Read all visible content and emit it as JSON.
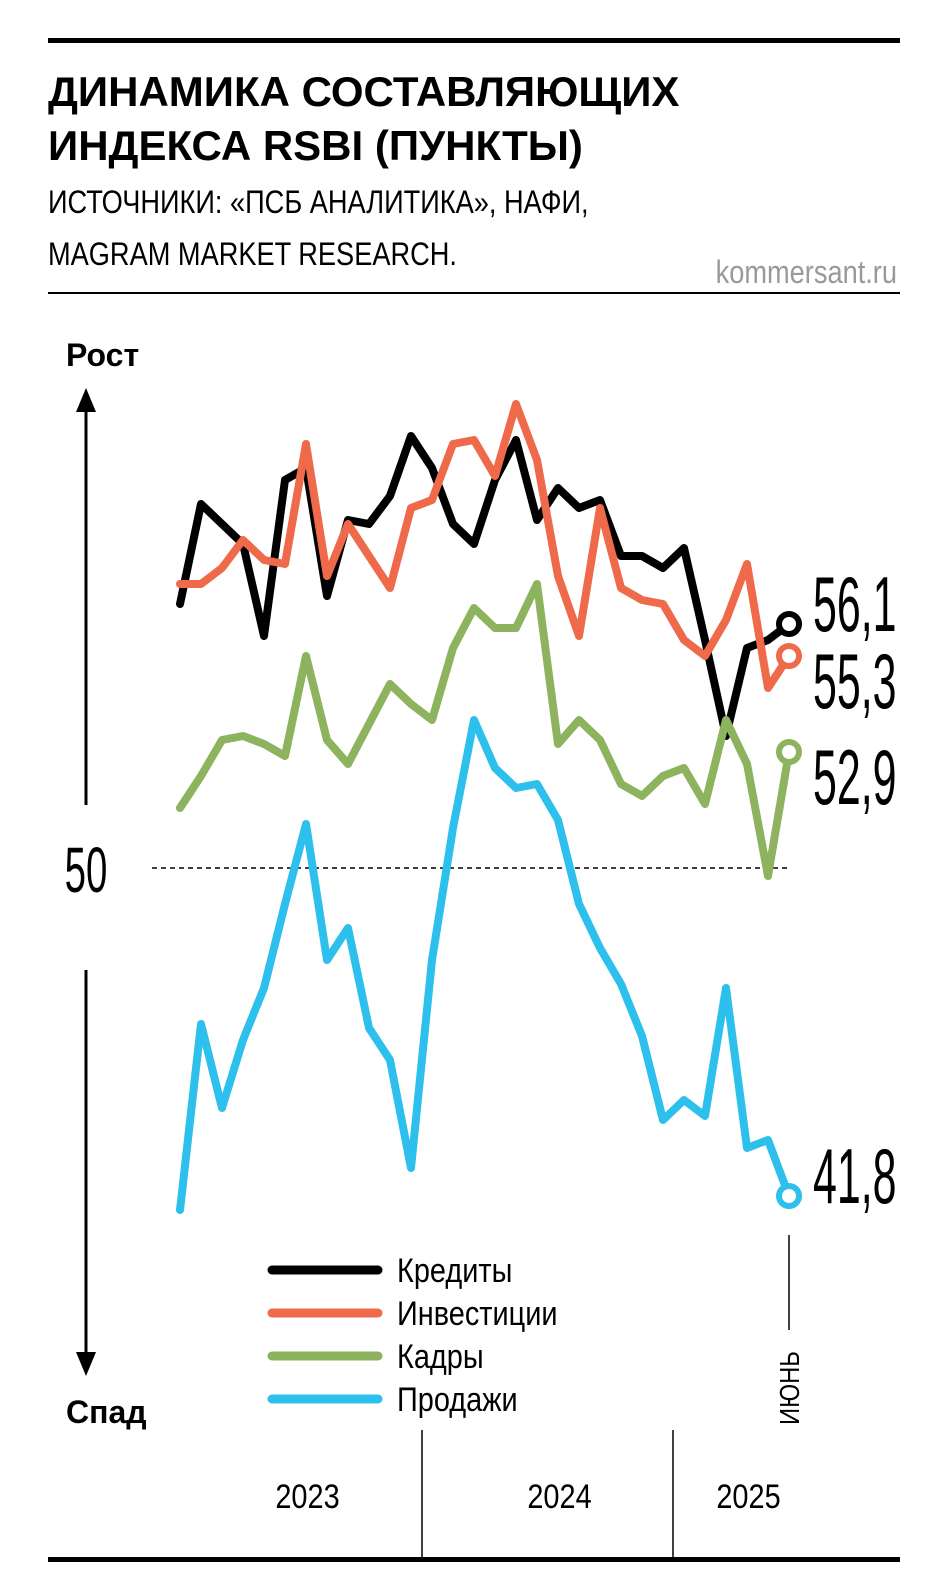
{
  "chart_data": {
    "type": "line",
    "title": [
      "ДИНАМИКА СОСТАВЛЯЮЩИХ",
      "ИНДЕКСА RSBI (ПУНКТЫ)"
    ],
    "subtitle": [
      "ИСТОЧНИКИ: «ПСБ АНАЛИТИКА», НАФИ,",
      "MAGRAM MARKET RESEARCH."
    ],
    "source": "kommersant.ru",
    "axis_up": "Рост",
    "axis_down": "Спад",
    "categories": [
      null,
      null,
      null,
      null,
      null,
      null,
      null,
      null,
      null,
      null,
      null,
      null,
      null,
      null,
      null,
      null,
      null,
      null,
      null,
      null,
      null,
      null,
      null,
      null,
      null,
      null,
      null,
      null,
      null,
      "ИЮНЬ"
    ],
    "years": [
      "2023",
      "2024",
      "2025"
    ],
    "ylim": [
      40,
      62
    ],
    "yticks": [
      50
    ],
    "grid": true,
    "series": [
      {
        "name": "Кредиты",
        "color": "#000000",
        "values": [
          56.6,
          59.1,
          58.6,
          58.1,
          55.8,
          59.7,
          60.0,
          56.8,
          58.7,
          58.6,
          59.3,
          60.8,
          60.0,
          58.6,
          58.1,
          59.7,
          60.7,
          58.7,
          59.5,
          59.0,
          59.2,
          57.8,
          57.8,
          57.5,
          58.0,
          55.7,
          53.3,
          55.5,
          55.7,
          56.1
        ],
        "value_labels": [
          null,
          null,
          null,
          null,
          null,
          null,
          null,
          null,
          null,
          null,
          null,
          null,
          null,
          null,
          null,
          null,
          null,
          null,
          null,
          null,
          null,
          null,
          null,
          null,
          null,
          null,
          null,
          null,
          null,
          "56,1"
        ]
      },
      {
        "name": "Инвестиции",
        "color": "#ee6a4a",
        "values": [
          57.1,
          57.1,
          57.5,
          58.2,
          57.7,
          57.6,
          60.6,
          57.3,
          58.6,
          57.8,
          57.0,
          59.0,
          59.2,
          60.6,
          60.7,
          59.8,
          61.6,
          60.2,
          57.3,
          55.8,
          59.0,
          57.0,
          56.7,
          56.6,
          55.7,
          55.3,
          56.2,
          57.6,
          54.5,
          55.3
        ],
        "value_labels": [
          null,
          null,
          null,
          null,
          null,
          null,
          null,
          null,
          null,
          null,
          null,
          null,
          null,
          null,
          null,
          null,
          null,
          null,
          null,
          null,
          null,
          null,
          null,
          null,
          null,
          null,
          null,
          null,
          null,
          "55,3"
        ]
      },
      {
        "name": "Кадры",
        "color": "#8db35e",
        "values": [
          51.5,
          52.3,
          53.2,
          53.3,
          53.1,
          52.8,
          55.3,
          53.2,
          52.6,
          53.6,
          54.6,
          54.1,
          53.7,
          55.5,
          56.5,
          56.0,
          56.0,
          57.1,
          53.1,
          53.7,
          53.2,
          52.1,
          51.8,
          52.3,
          52.5,
          51.6,
          53.7,
          52.6,
          49.8,
          52.9
        ],
        "value_labels": [
          null,
          null,
          null,
          null,
          null,
          null,
          null,
          null,
          null,
          null,
          null,
          null,
          null,
          null,
          null,
          null,
          null,
          null,
          null,
          null,
          null,
          null,
          null,
          null,
          null,
          null,
          null,
          null,
          null,
          "52,9"
        ]
      },
      {
        "name": "Продажи",
        "color": "#2ec0ec",
        "values": [
          41.45,
          46.1,
          44.0,
          45.7,
          47.0,
          49.1,
          51.1,
          47.7,
          48.5,
          46.0,
          45.2,
          42.5,
          47.7,
          51.0,
          53.7,
          52.5,
          52.0,
          52.1,
          51.2,
          49.1,
          48.0,
          47.1,
          45.8,
          43.7,
          44.2,
          43.8,
          47.0,
          43.0,
          43.2,
          41.8
        ],
        "value_labels": [
          null,
          null,
          null,
          null,
          null,
          null,
          null,
          null,
          null,
          null,
          null,
          null,
          null,
          null,
          null,
          null,
          null,
          null,
          null,
          null,
          null,
          null,
          null,
          null,
          null,
          null,
          null,
          null,
          null,
          "41,8"
        ]
      }
    ]
  }
}
